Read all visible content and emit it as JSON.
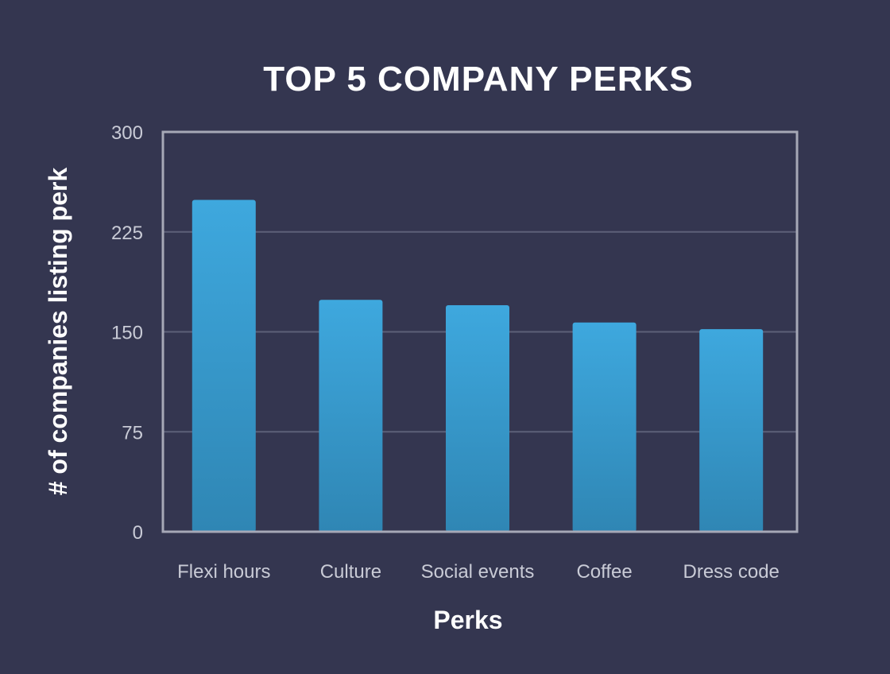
{
  "chart_data": {
    "type": "bar",
    "title": "TOP 5 COMPANY PERKS",
    "xlabel": "Perks",
    "ylabel": "# of companies listing perk",
    "categories": [
      "Flexi hours",
      "Culture",
      "Social events",
      "Coffee",
      "Dress code"
    ],
    "values": [
      249,
      174,
      170,
      157,
      152
    ],
    "ylim": [
      0,
      300
    ],
    "yticks": [
      "0",
      "75",
      "150",
      "225",
      "300"
    ],
    "grid": true,
    "legend": "none"
  },
  "colors": {
    "background": "#343650",
    "bar_top": "#3ea8de",
    "bar_bottom": "#2f86b4",
    "frame": "#a6a8b6",
    "gridline": "#5d6078"
  }
}
